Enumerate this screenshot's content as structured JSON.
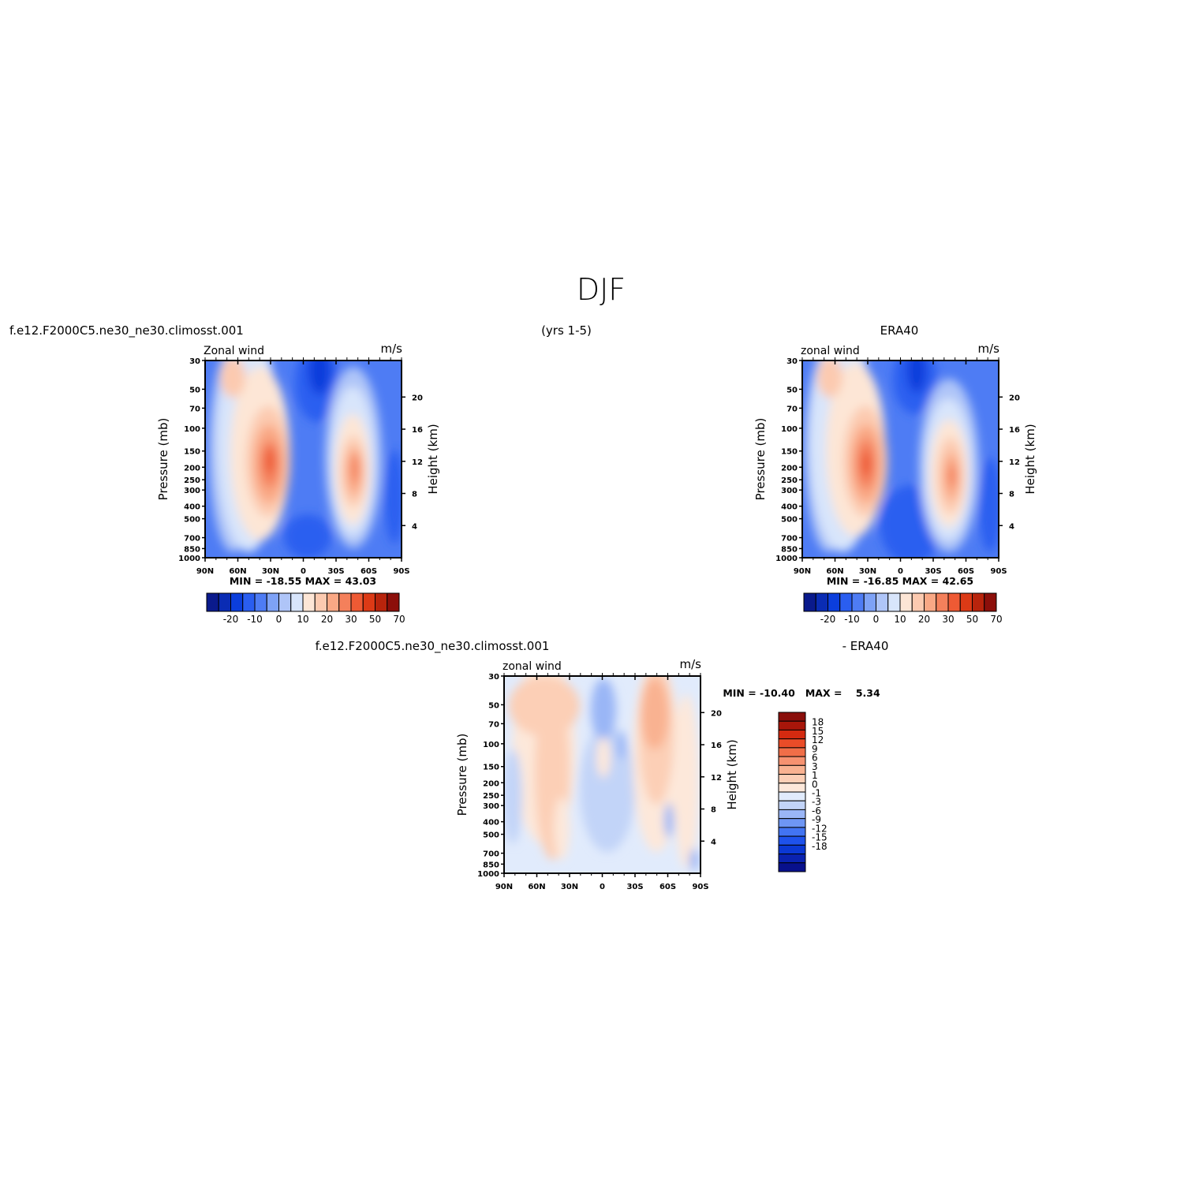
{
  "figure": {
    "title": "DJF",
    "left_header": "f.e12.F2000C5.ne30_ne30.climosst.001",
    "center_header": "(yrs 1-5)",
    "right_header": "ERA40",
    "diff_header_left": "f.e12.F2000C5.ne30_ne30.climosst.001",
    "diff_header_right": "- ERA40"
  },
  "axes": {
    "pressure_label": "Pressure (mb)",
    "height_label": "Height (km)",
    "pressure_ticks": [
      "30",
      "50",
      "70",
      "100",
      "150",
      "200",
      "250",
      "300",
      "400",
      "500",
      "700",
      "850",
      "1000"
    ],
    "height_ticks": [
      "20",
      "16",
      "12",
      "8",
      "4"
    ],
    "lat_ticks": [
      "90N",
      "60N",
      "30N",
      "0",
      "30S",
      "60S",
      "90S"
    ]
  },
  "colors": {
    "abs": [
      "#0a1a8c",
      "#0a2cb4",
      "#0b3edc",
      "#2a5ef0",
      "#4e7cf4",
      "#7ea2f6",
      "#afc5f8",
      "#d8e5fb",
      "#fde6d6",
      "#fccab0",
      "#f9a885",
      "#f4805b",
      "#ee5a34",
      "#dc3a16",
      "#b8240c",
      "#8c0f0a"
    ],
    "diff": [
      "#08108c",
      "#0a22b0",
      "#0b38d4",
      "#1e52ec",
      "#4274f2",
      "#6e96f4",
      "#9ab6f6",
      "#c2d4f8",
      "#e1ebfc",
      "#fde8da",
      "#fccfb6",
      "#f9b291",
      "#f69270",
      "#f06e48",
      "#ea4c28",
      "#d42a10",
      "#a8160a",
      "#8a0e0a"
    ]
  },
  "chart_data": [
    {
      "type": "contour",
      "name": "model",
      "title_left": "Zonal wind",
      "units": "m/s",
      "min_max": "MIN = -18.55   MAX =  43.03",
      "colorbar_labels": [
        "-20",
        "-10",
        "0",
        "10",
        "20",
        "30",
        "50",
        "70"
      ],
      "levels": [
        -20,
        -15,
        -10,
        -5,
        0,
        5,
        10,
        15,
        20,
        25,
        30,
        40,
        50,
        60,
        70
      ]
    },
    {
      "type": "contour",
      "name": "obs",
      "title_left": "zonal wind",
      "units": "m/s",
      "min_max": "MIN = -16.85   MAX =  42.65",
      "colorbar_labels": [
        "-20",
        "-10",
        "0",
        "10",
        "20",
        "30",
        "50",
        "70"
      ],
      "levels": [
        -20,
        -15,
        -10,
        -5,
        0,
        5,
        10,
        15,
        20,
        25,
        30,
        40,
        50,
        60,
        70
      ]
    },
    {
      "type": "contour",
      "name": "diff",
      "title_left": "zonal wind",
      "units": "m/s",
      "min_max": "MIN = -10.40   MAX =    5.34",
      "colorbar_labels": [
        "18",
        "15",
        "12",
        "9",
        "6",
        "3",
        "1",
        "0",
        "-1",
        "-3",
        "-6",
        "-9",
        "-12",
        "-15",
        "-18"
      ],
      "levels": [
        -18,
        -15,
        -12,
        -9,
        -6,
        -3,
        -1,
        0,
        1,
        3,
        6,
        9,
        12,
        15,
        18
      ]
    }
  ]
}
